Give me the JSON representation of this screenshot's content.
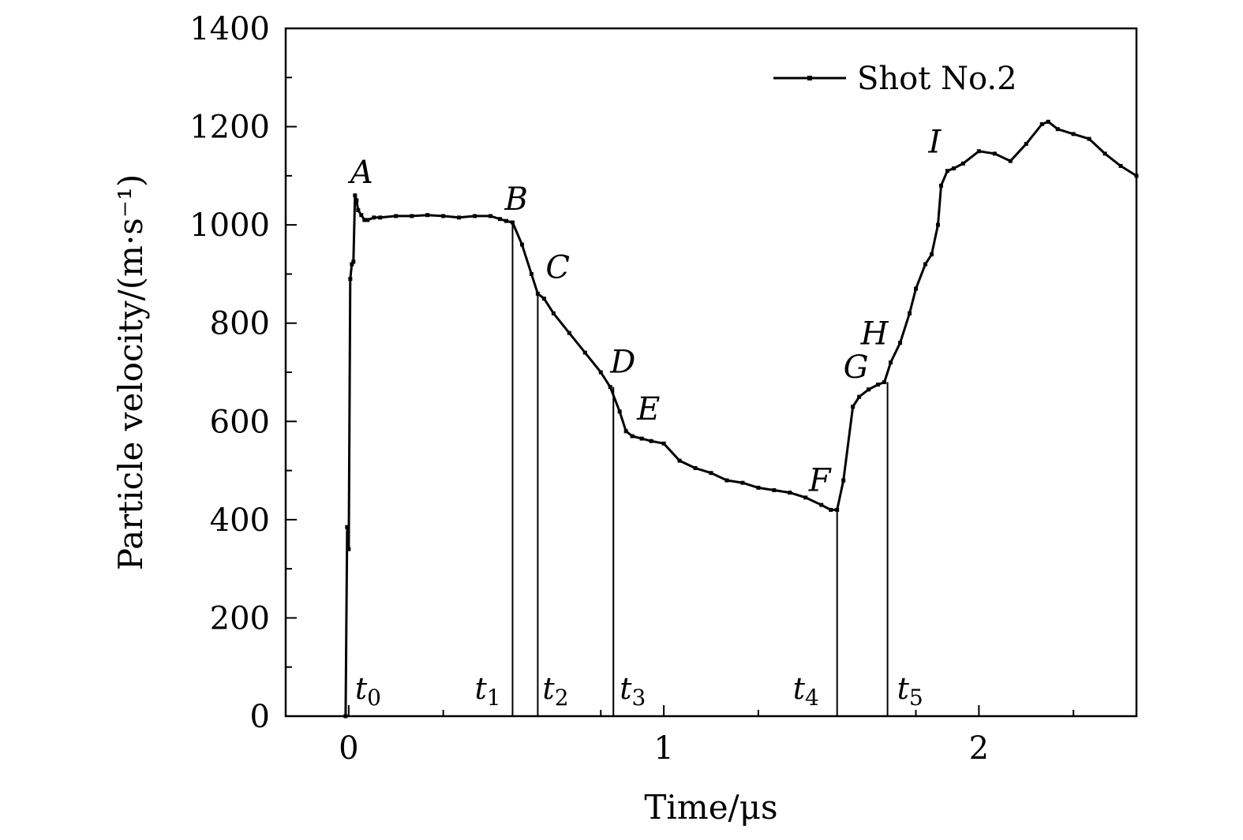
{
  "chart_data": {
    "type": "line",
    "xlabel": "Time/μs",
    "ylabel": "Particle velocity/(m·s⁻¹)",
    "xlim": [
      -0.2,
      2.5
    ],
    "ylim": [
      0,
      1400
    ],
    "xticks": [
      0,
      1,
      2
    ],
    "yticks": [
      0,
      200,
      400,
      600,
      800,
      1000,
      1200,
      1400
    ],
    "legend": {
      "position": "top-right",
      "entry": "Shot No.2"
    },
    "grid": false,
    "series": [
      {
        "name": "Shot No.2",
        "color": "#000000",
        "x": [
          -0.01,
          -0.005,
          0.0,
          0.005,
          0.01,
          0.015,
          0.02,
          0.025,
          0.03,
          0.04,
          0.05,
          0.06,
          0.08,
          0.1,
          0.15,
          0.2,
          0.25,
          0.3,
          0.35,
          0.4,
          0.45,
          0.48,
          0.5,
          0.52,
          0.55,
          0.58,
          0.6,
          0.62,
          0.65,
          0.7,
          0.75,
          0.8,
          0.83,
          0.86,
          0.88,
          0.9,
          0.93,
          0.96,
          1.0,
          1.05,
          1.1,
          1.15,
          1.2,
          1.25,
          1.3,
          1.35,
          1.4,
          1.45,
          1.5,
          1.53,
          1.55,
          1.57,
          1.6,
          1.62,
          1.65,
          1.68,
          1.7,
          1.72,
          1.75,
          1.78,
          1.8,
          1.83,
          1.85,
          1.87,
          1.88,
          1.9,
          1.92,
          1.95,
          2.0,
          2.05,
          2.1,
          2.15,
          2.2,
          2.22,
          2.25,
          2.3,
          2.35,
          2.4,
          2.45,
          2.5
        ],
        "y": [
          0,
          385,
          340,
          890,
          920,
          925,
          1060,
          1050,
          1030,
          1020,
          1010,
          1010,
          1015,
          1015,
          1018,
          1018,
          1020,
          1018,
          1015,
          1018,
          1018,
          1012,
          1008,
          1005,
          960,
          900,
          860,
          850,
          820,
          780,
          740,
          700,
          670,
          620,
          580,
          570,
          565,
          560,
          555,
          520,
          505,
          495,
          480,
          475,
          465,
          460,
          455,
          445,
          430,
          420,
          420,
          480,
          630,
          650,
          665,
          675,
          680,
          720,
          760,
          820,
          870,
          920,
          940,
          1000,
          1080,
          1110,
          1115,
          1125,
          1150,
          1145,
          1130,
          1165,
          1205,
          1210,
          1195,
          1185,
          1175,
          1145,
          1120,
          1100
        ]
      }
    ],
    "point_labels": [
      {
        "label": "A",
        "x": 0.02,
        "y": 1060
      },
      {
        "label": "B",
        "x": 0.52,
        "y": 1005
      },
      {
        "label": "C",
        "x": 0.6,
        "y": 860
      },
      {
        "label": "D",
        "x": 0.84,
        "y": 670
      },
      {
        "label": "E",
        "x": 0.9,
        "y": 575
      },
      {
        "label": "F",
        "x": 1.55,
        "y": 420
      },
      {
        "label": "G",
        "x": 1.62,
        "y": 650
      },
      {
        "label": "H",
        "x": 1.71,
        "y": 680
      },
      {
        "label": "I",
        "x": 1.9,
        "y": 1115
      }
    ],
    "time_markers": [
      {
        "base": "t",
        "sub": "0",
        "x": -0.01
      },
      {
        "base": "t",
        "sub": "1",
        "x": 0.52
      },
      {
        "base": "t",
        "sub": "2",
        "x": 0.6
      },
      {
        "base": "t",
        "sub": "3",
        "x": 0.84
      },
      {
        "base": "t",
        "sub": "4",
        "x": 1.55
      },
      {
        "base": "t",
        "sub": "5",
        "x": 1.71
      }
    ]
  }
}
